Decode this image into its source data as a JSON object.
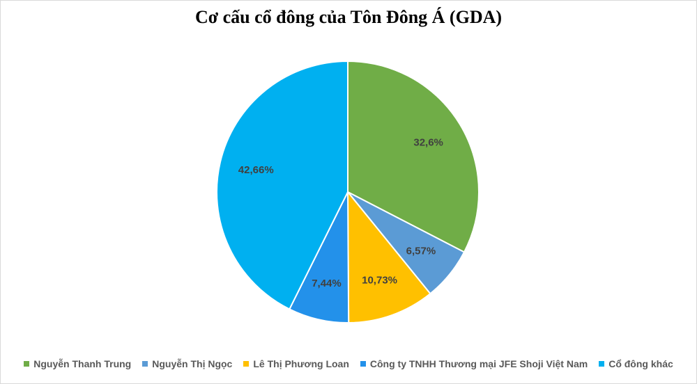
{
  "chart_data": {
    "type": "pie",
    "title": "Cơ cấu cổ đông của Tôn Đông Á (GDA)",
    "legend_position": "bottom",
    "slices": [
      {
        "label": "Nguyễn Thanh Trung",
        "value": 32.6,
        "display": "32,6%",
        "color": "#70ad47"
      },
      {
        "label": "Nguyễn Thị Ngọc",
        "value": 6.57,
        "display": "6,57%",
        "color": "#5b9bd5"
      },
      {
        "label": "Lê Thị Phương Loan",
        "value": 10.73,
        "display": "10,73%",
        "color": "#ffc000"
      },
      {
        "label": "Công ty TNHH Thương mại JFE Shoji Việt Nam",
        "value": 7.44,
        "display": "7,44%",
        "color": "#2391ea"
      },
      {
        "label": "Cổ đông khác",
        "value": 42.66,
        "display": "42,66%",
        "color": "#00b0f0"
      }
    ]
  }
}
